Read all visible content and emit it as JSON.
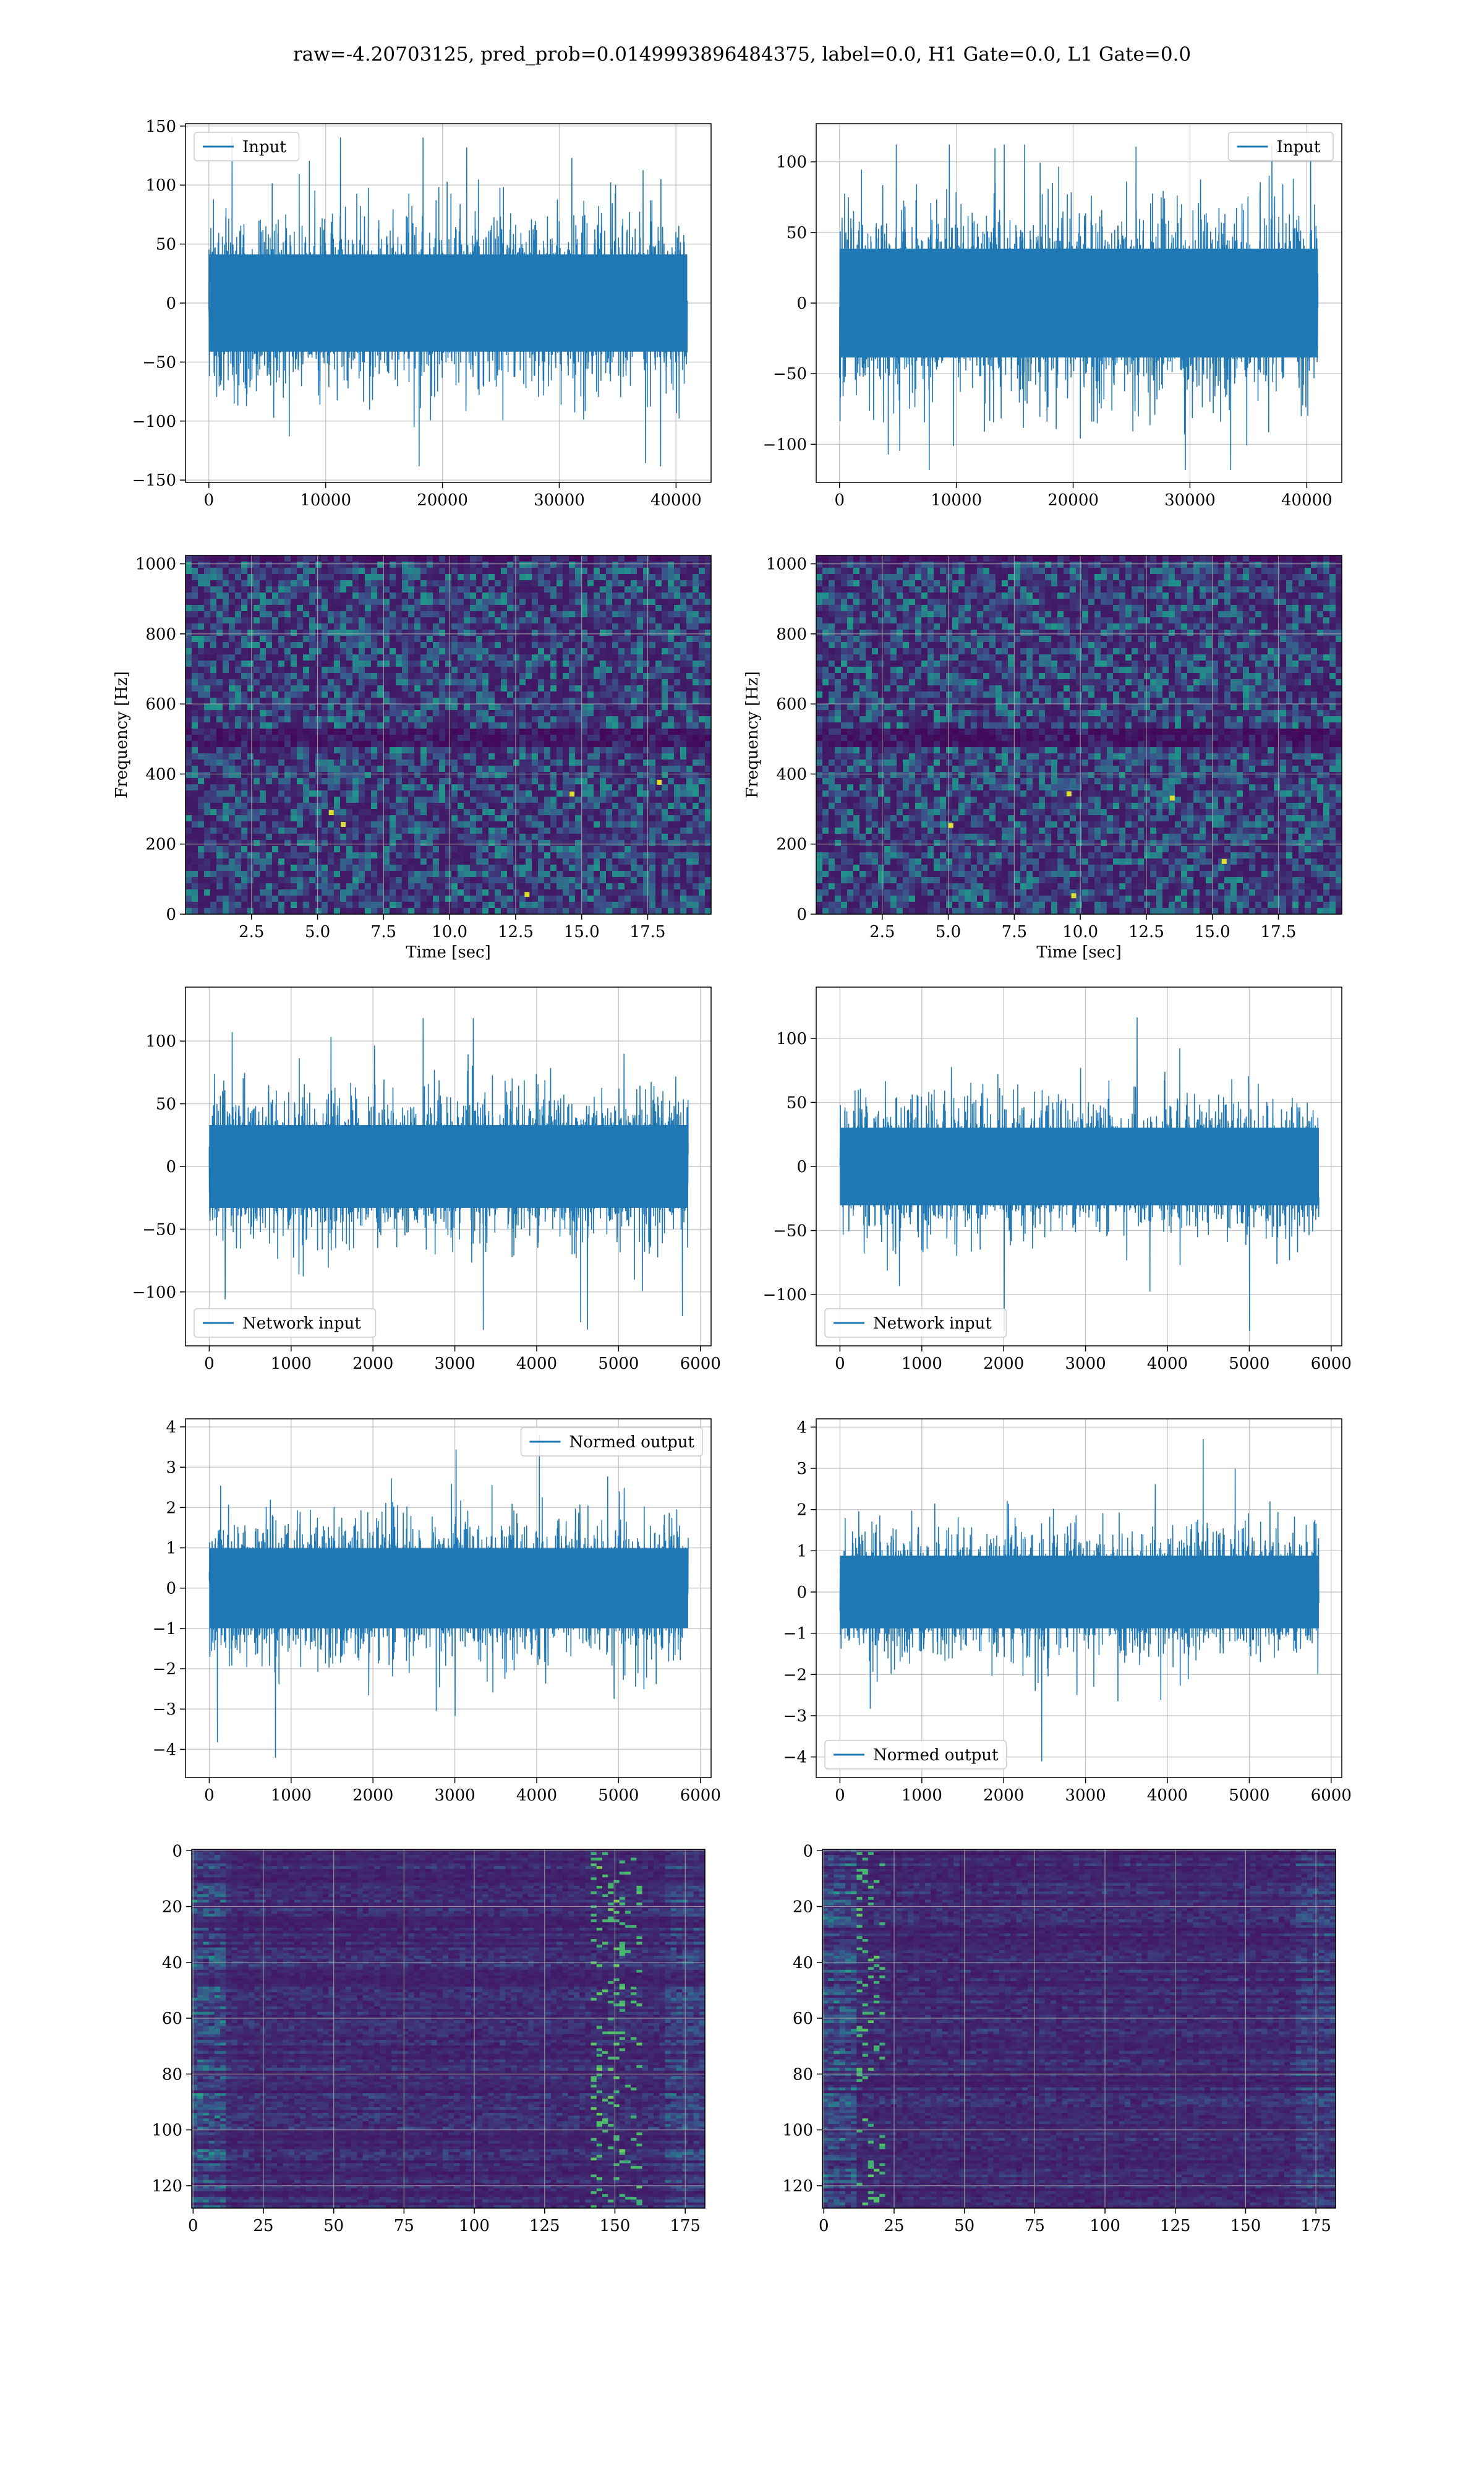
{
  "figure": {
    "title": "raw=-4.20703125, pred_prob=0.0149993896484375, label=0.0, H1 Gate=0.0, L1 Gate=0.0"
  },
  "colors": {
    "series": "#1f77b4",
    "grid": "#b0b0b0",
    "viridis_low": "#440154",
    "viridis_mid": "#21918c",
    "viridis_high": "#fde725"
  },
  "chart_data": [
    {
      "id": "input-left",
      "type": "line",
      "xlim": [
        -2000,
        43000
      ],
      "ylim": [
        -152,
        152
      ],
      "xticks": [
        0,
        10000,
        20000,
        30000,
        40000
      ],
      "yticks": [
        -150,
        -100,
        -50,
        0,
        50,
        100,
        150
      ],
      "x_range": [
        0,
        40960
      ],
      "envelope": 75,
      "peak": 140,
      "trough": -138,
      "series": [
        {
          "name": "Input"
        }
      ],
      "legend": "upper left",
      "grid": true
    },
    {
      "id": "input-right",
      "type": "line",
      "xlim": [
        -2000,
        43000
      ],
      "ylim": [
        -127,
        127
      ],
      "xticks": [
        0,
        10000,
        20000,
        30000,
        40000
      ],
      "yticks": [
        -100,
        -50,
        0,
        50,
        100
      ],
      "x_range": [
        0,
        40960
      ],
      "envelope": 70,
      "peak": 112,
      "trough": -118,
      "series": [
        {
          "name": "Input"
        }
      ],
      "legend": "upper right",
      "grid": true
    },
    {
      "id": "spectrogram-left",
      "type": "heatmap",
      "xlim": [
        0,
        19.9
      ],
      "ylim": [
        0,
        1024
      ],
      "xticks": [
        2.5,
        5.0,
        7.5,
        10.0,
        12.5,
        15.0,
        17.5
      ],
      "yticks": [
        0,
        200,
        400,
        600,
        800,
        1000
      ],
      "xlabel": "Time [sec]",
      "ylabel": "Frequency [Hz]",
      "grid": true
    },
    {
      "id": "spectrogram-right",
      "type": "heatmap",
      "xlim": [
        0,
        19.9
      ],
      "ylim": [
        0,
        1024
      ],
      "xticks": [
        2.5,
        5.0,
        7.5,
        10.0,
        12.5,
        15.0,
        17.5
      ],
      "yticks": [
        0,
        200,
        400,
        600,
        800,
        1000
      ],
      "xlabel": "Time [sec]",
      "ylabel": "Frequency [Hz]",
      "grid": true
    },
    {
      "id": "network-left",
      "type": "line",
      "xlim": [
        -290,
        6130
      ],
      "ylim": [
        -143,
        143
      ],
      "xticks": [
        0,
        1000,
        2000,
        3000,
        4000,
        5000,
        6000
      ],
      "yticks": [
        -100,
        -50,
        0,
        50,
        100
      ],
      "x_range": [
        0,
        5850
      ],
      "envelope": 60,
      "peak": 118,
      "trough": -130,
      "series": [
        {
          "name": "Network input"
        }
      ],
      "legend": "lower left",
      "grid": true
    },
    {
      "id": "network-right",
      "type": "line",
      "xlim": [
        -290,
        6130
      ],
      "ylim": [
        -140,
        140
      ],
      "xticks": [
        0,
        1000,
        2000,
        3000,
        4000,
        5000,
        6000
      ],
      "yticks": [
        -100,
        -50,
        0,
        50,
        100
      ],
      "x_range": [
        0,
        5850
      ],
      "envelope": 55,
      "peak": 116,
      "trough": -128,
      "series": [
        {
          "name": "Network input"
        }
      ],
      "legend": "lower left",
      "grid": true
    },
    {
      "id": "normed-left",
      "type": "line",
      "xlim": [
        -290,
        6130
      ],
      "ylim": [
        -4.7,
        4.2
      ],
      "xticks": [
        0,
        1000,
        2000,
        3000,
        4000,
        5000,
        6000
      ],
      "yticks": [
        -4,
        -3,
        -2,
        -1,
        0,
        1,
        2,
        3,
        4
      ],
      "x_range": [
        0,
        5850
      ],
      "envelope": 1.8,
      "peak": 3.8,
      "trough": -4.2,
      "series": [
        {
          "name": "Normed output"
        }
      ],
      "legend": "upper right",
      "grid": true
    },
    {
      "id": "normed-right",
      "type": "line",
      "xlim": [
        -290,
        6130
      ],
      "ylim": [
        -4.5,
        4.2
      ],
      "xticks": [
        0,
        1000,
        2000,
        3000,
        4000,
        5000,
        6000
      ],
      "yticks": [
        -4,
        -3,
        -2,
        -1,
        0,
        1,
        2,
        3,
        4
      ],
      "x_range": [
        0,
        5850
      ],
      "envelope": 1.6,
      "peak": 3.7,
      "trough": -4.1,
      "series": [
        {
          "name": "Normed output"
        }
      ],
      "legend": "lower left",
      "grid": true
    },
    {
      "id": "feature-left",
      "type": "heatmap",
      "xlim": [
        -0.5,
        182
      ],
      "ylim": [
        128,
        -0.5
      ],
      "xticks": [
        0,
        25,
        50,
        75,
        100,
        125,
        150,
        175
      ],
      "yticks": [
        0,
        20,
        40,
        60,
        80,
        100,
        120
      ],
      "grid": true
    },
    {
      "id": "feature-right",
      "type": "heatmap",
      "xlim": [
        -0.5,
        182
      ],
      "ylim": [
        128,
        -0.5
      ],
      "xticks": [
        0,
        25,
        50,
        75,
        100,
        125,
        150,
        175
      ],
      "yticks": [
        0,
        20,
        40,
        60,
        80,
        100,
        120
      ],
      "grid": true
    }
  ]
}
